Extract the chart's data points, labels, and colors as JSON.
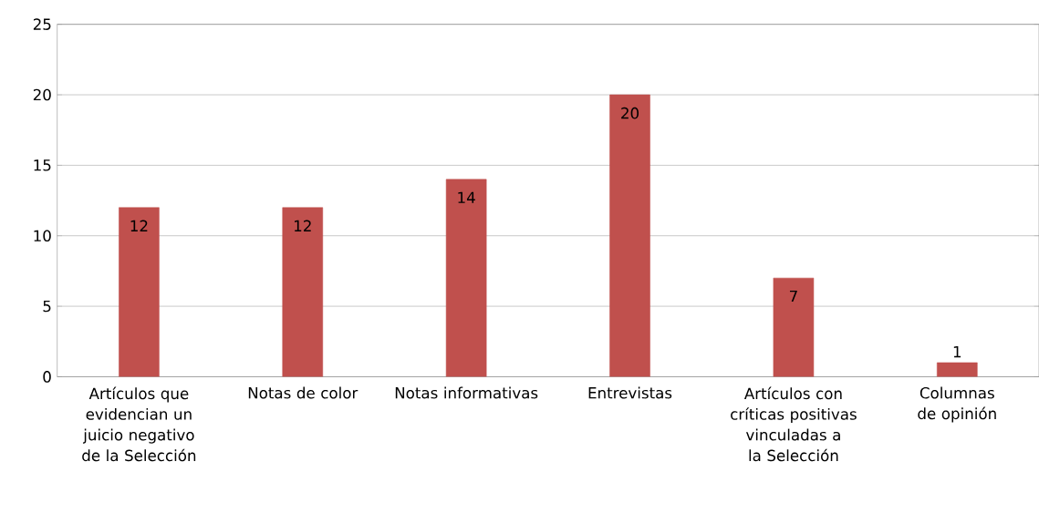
{
  "chart_data": {
    "type": "bar",
    "categories": [
      "Artículos que evidencian un juicio negativo de la Selección",
      "Notas de color",
      "Notas informativas",
      "Entrevistas",
      "Artículos con críticas positivas vinculadas a la Selección",
      "Columnas de opinión"
    ],
    "values": [
      12,
      12,
      14,
      20,
      7,
      1
    ],
    "color": "#c0504d",
    "ylim": [
      0,
      25
    ],
    "yticks": [
      0,
      5,
      10,
      15,
      20,
      25
    ],
    "grid": "y",
    "data_labels": true
  }
}
